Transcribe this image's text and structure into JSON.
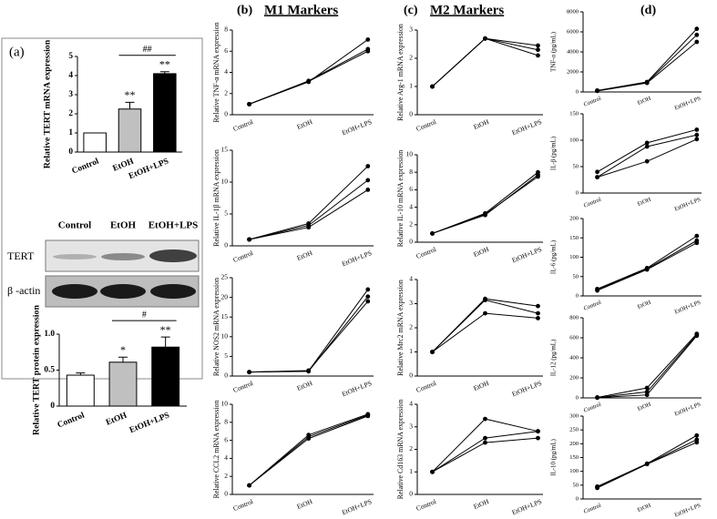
{
  "panels": {
    "a": "(a)",
    "b": "(b)",
    "c": "(c)",
    "d": "(d)",
    "b_title": "M1 Markers",
    "c_title": "M2 Markers"
  },
  "blot": {
    "lanes": [
      "Control",
      "EtOH",
      "EtOH+LPS"
    ],
    "rows": [
      "TERT",
      "β -actin"
    ]
  },
  "chart_data": [
    {
      "type": "bar",
      "ylabel": "Relative TERT mRNA expression",
      "categories": [
        "Control",
        "EtOH",
        "EtOH+LPS"
      ],
      "values": [
        1,
        2.25,
        4.1
      ],
      "errors": [
        null,
        0.35,
        0.1
      ],
      "colors": [
        "#ffffff",
        "#c0c0c0",
        "#000000"
      ],
      "ylim": [
        0,
        5
      ],
      "yticks": [
        0,
        1,
        2,
        3,
        4,
        5
      ],
      "annotations": [
        {
          "text": "**",
          "category": "EtOH"
        },
        {
          "text": "**",
          "category": "EtOH+LPS"
        },
        {
          "text": "##",
          "from": "EtOH",
          "to": "EtOH+LPS"
        }
      ]
    },
    {
      "type": "bar",
      "ylabel": "Relative TERT protein expression",
      "categories": [
        "Control",
        "EtOH",
        "EtOH+LPS"
      ],
      "values": [
        0.43,
        0.61,
        0.82
      ],
      "errors": [
        0.03,
        0.07,
        0.14
      ],
      "colors": [
        "#ffffff",
        "#c0c0c0",
        "#000000"
      ],
      "ylim": [
        0,
        1
      ],
      "yticks": [
        0,
        0.5,
        {
          "value": 1,
          "label": "1.0"
        }
      ],
      "annotations": [
        {
          "text": "*",
          "category": "EtOH"
        },
        {
          "text": "**",
          "category": "EtOH+LPS"
        },
        {
          "text": "#",
          "from": "EtOH",
          "to": "EtOH+LPS"
        }
      ]
    },
    {
      "type": "line",
      "ylabel": "Relative TNF-α mRNA expression",
      "categories": [
        "Control",
        "EtOH",
        "EtOH+LPS"
      ],
      "series": [
        {
          "color": "#000000",
          "values": [
            1,
            3.1,
            7.1
          ]
        },
        {
          "color": "#000000",
          "values": [
            1,
            3.2,
            6.2
          ]
        },
        {
          "color": "#000000",
          "values": [
            1,
            3.15,
            6.0
          ]
        }
      ],
      "ylim": [
        0,
        8
      ],
      "yticks": [
        0,
        2,
        4,
        6,
        8
      ]
    },
    {
      "type": "line",
      "ylabel": "Relative IL-1β mRNA expression",
      "categories": [
        "Control",
        "EtOH",
        "EtOH+LPS"
      ],
      "series": [
        {
          "color": "#000000",
          "values": [
            1,
            3.5,
            12.5
          ]
        },
        {
          "color": "#000000",
          "values": [
            1,
            3.2,
            10.3
          ]
        },
        {
          "color": "#000000",
          "values": [
            1,
            2.9,
            8.8
          ]
        }
      ],
      "ylim": [
        0,
        15
      ],
      "yticks": [
        0,
        5,
        10,
        15
      ]
    },
    {
      "type": "line",
      "ylabel": "Relative NOS2 mRNA expression",
      "categories": [
        "Control",
        "EtOH",
        "EtOH+LPS"
      ],
      "series": [
        {
          "color": "#000000",
          "values": [
            1,
            1.3,
            22
          ]
        },
        {
          "color": "#000000",
          "values": [
            1,
            1.2,
            20.2
          ]
        },
        {
          "color": "#000000",
          "values": [
            1,
            1.4,
            19
          ]
        }
      ],
      "ylim": [
        0,
        25
      ],
      "yticks": [
        0,
        5,
        10,
        15,
        20,
        25
      ]
    },
    {
      "type": "line",
      "ylabel": "Relative CCL2 mRNA expression",
      "categories": [
        "Control",
        "EtOH",
        "EtOH+LPS"
      ],
      "series": [
        {
          "color": "#000000",
          "values": [
            1,
            6.6,
            8.9
          ]
        },
        {
          "color": "#000000",
          "values": [
            1,
            6.4,
            8.8
          ]
        },
        {
          "color": "#000000",
          "values": [
            1,
            6.2,
            8.7
          ]
        }
      ],
      "ylim": [
        0,
        10
      ],
      "yticks": [
        0,
        2,
        4,
        6,
        8,
        10
      ]
    },
    {
      "type": "line",
      "ylabel": "Relative Arg-1 mRNA expression",
      "categories": [
        "Control",
        "EtOH",
        "EtOH+LPS"
      ],
      "series": [
        {
          "color": "#000000",
          "values": [
            1,
            2.7,
            2.45
          ]
        },
        {
          "color": "#000000",
          "values": [
            1,
            2.7,
            2.3
          ]
        },
        {
          "color": "#000000",
          "values": [
            1,
            2.7,
            2.1
          ]
        }
      ],
      "ylim": [
        0,
        3
      ],
      "yticks": [
        0,
        1,
        2,
        3
      ]
    },
    {
      "type": "line",
      "ylabel": "Relative IL-10 mRNA expression",
      "categories": [
        "Control",
        "EtOH",
        "EtOH+LPS"
      ],
      "series": [
        {
          "color": "#000000",
          "values": [
            1,
            3.3,
            8.0
          ]
        },
        {
          "color": "#000000",
          "values": [
            1,
            3.1,
            7.7
          ]
        },
        {
          "color": "#000000",
          "values": [
            1,
            3.2,
            7.5
          ]
        }
      ],
      "ylim": [
        0,
        10
      ],
      "yticks": [
        0,
        2,
        4,
        6,
        8,
        10
      ]
    },
    {
      "type": "line",
      "ylabel": "Relative Mrc2 mRNA expression",
      "categories": [
        "Control",
        "EtOH",
        "EtOH+LPS"
      ],
      "series": [
        {
          "color": "#000000",
          "values": [
            1,
            3.2,
            2.9
          ]
        },
        {
          "color": "#000000",
          "values": [
            1,
            3.15,
            2.6
          ]
        },
        {
          "color": "#000000",
          "values": [
            1,
            2.6,
            2.4
          ]
        }
      ],
      "ylim": [
        0,
        4
      ],
      "yticks": [
        0,
        1,
        2,
        3,
        4
      ]
    },
    {
      "type": "line",
      "ylabel": "Relative Cd163 mRNA expression",
      "categories": [
        "Control",
        "EtOH",
        "EtOH+LPS"
      ],
      "series": [
        {
          "color": "#000000",
          "values": [
            1,
            3.35,
            2.8
          ]
        },
        {
          "color": "#000000",
          "values": [
            1,
            2.5,
            2.8
          ]
        },
        {
          "color": "#000000",
          "values": [
            1,
            2.3,
            2.5
          ]
        }
      ],
      "ylim": [
        0,
        4
      ],
      "yticks": [
        0,
        1,
        2,
        3,
        4
      ]
    },
    {
      "type": "line",
      "ylabel": "TNF-α (pg/mL)",
      "categories": [
        "Control",
        "EtOH",
        "EtOH+LPS"
      ],
      "series": [
        {
          "color": "#000000",
          "values": [
            150,
            1000,
            6300
          ]
        },
        {
          "color": "#000000",
          "values": [
            120,
            950,
            5700
          ]
        },
        {
          "color": "#000000",
          "values": [
            100,
            900,
            5000
          ]
        }
      ],
      "ylim": [
        0,
        8000
      ],
      "yticks": [
        0,
        2000,
        4000,
        6000,
        8000
      ]
    },
    {
      "type": "line",
      "ylabel": "IL-β (pg/mL)",
      "categories": [
        "Control",
        "EtOH",
        "EtOH+LPS"
      ],
      "series": [
        {
          "color": "#000000",
          "values": [
            40,
            95,
            120
          ]
        },
        {
          "color": "#000000",
          "values": [
            30,
            88,
            110
          ]
        },
        {
          "color": "#000000",
          "values": [
            30,
            60,
            102
          ]
        }
      ],
      "ylim": [
        0,
        150
      ],
      "yticks": [
        0,
        50,
        100,
        150
      ]
    },
    {
      "type": "line",
      "ylabel": "IL-6 (pg/mL)",
      "categories": [
        "Control",
        "EtOH",
        "EtOH+LPS"
      ],
      "series": [
        {
          "color": "#000000",
          "values": [
            18,
            72,
            155
          ]
        },
        {
          "color": "#000000",
          "values": [
            16,
            70,
            143
          ]
        },
        {
          "color": "#000000",
          "values": [
            14,
            68,
            137
          ]
        }
      ],
      "ylim": [
        0,
        200
      ],
      "yticks": [
        0,
        50,
        100,
        150,
        200
      ]
    },
    {
      "type": "line",
      "ylabel": "IL-12 (pg/mL)",
      "categories": [
        "Control",
        "EtOH",
        "EtOH+LPS"
      ],
      "series": [
        {
          "color": "#000000",
          "values": [
            5,
            100,
            640
          ]
        },
        {
          "color": "#000000",
          "values": [
            3,
            60,
            630
          ]
        },
        {
          "color": "#000000",
          "values": [
            2,
            30,
            620
          ]
        }
      ],
      "ylim": [
        0,
        800
      ],
      "yticks": [
        0,
        200,
        400,
        600,
        800
      ]
    },
    {
      "type": "line",
      "ylabel": "IL-10 (pg/mL)",
      "categories": [
        "Control",
        "EtOH",
        "EtOH+LPS"
      ],
      "series": [
        {
          "color": "#000000",
          "values": [
            45,
            128,
            230
          ]
        },
        {
          "color": "#000000",
          "values": [
            42,
            127,
            215
          ]
        },
        {
          "color": "#000000",
          "values": [
            40,
            126,
            205
          ]
        }
      ],
      "ylim": [
        0,
        300
      ],
      "yticks": [
        0,
        50,
        100,
        150,
        200,
        250,
        300
      ]
    }
  ]
}
